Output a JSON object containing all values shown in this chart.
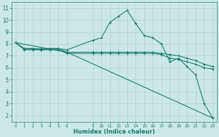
{
  "xlabel": "Humidex (Indice chaleur)",
  "bg_color": "#cce8e6",
  "grid_color": "#b0d4d2",
  "line_color": "#1a7a6e",
  "xlim": [
    -0.5,
    23.5
  ],
  "ylim": [
    1.5,
    11.5
  ],
  "x_ticks": [
    0,
    1,
    2,
    3,
    4,
    5,
    6,
    9,
    10,
    11,
    12,
    13,
    14,
    15,
    16,
    17,
    18,
    19,
    20,
    21,
    22,
    23
  ],
  "y_ticks": [
    2,
    3,
    4,
    5,
    6,
    7,
    8,
    9,
    10,
    11
  ],
  "series1_x": [
    0,
    1,
    2,
    3,
    4,
    5,
    6,
    9,
    10,
    11,
    12,
    13,
    14,
    15,
    16,
    17,
    18,
    19,
    20,
    21,
    22,
    23
  ],
  "series1_y": [
    8.1,
    7.5,
    7.5,
    7.5,
    7.6,
    7.6,
    7.5,
    8.3,
    8.5,
    9.8,
    10.3,
    10.8,
    9.7,
    8.7,
    8.5,
    8.0,
    6.5,
    6.8,
    6.1,
    5.4,
    3.0,
    1.8
  ],
  "series2_x": [
    0,
    6,
    23
  ],
  "series2_y": [
    8.1,
    7.3,
    1.8
  ],
  "series3_x": [
    0,
    1,
    2,
    3,
    4,
    5,
    6,
    9,
    10,
    11,
    12,
    13,
    14,
    15,
    16,
    17,
    18,
    19,
    20,
    21,
    22,
    23
  ],
  "series3_y": [
    8.1,
    7.6,
    7.6,
    7.6,
    7.6,
    7.6,
    7.3,
    7.3,
    7.3,
    7.3,
    7.3,
    7.3,
    7.3,
    7.3,
    7.3,
    7.2,
    7.1,
    7.0,
    6.8,
    6.6,
    6.3,
    6.1
  ],
  "series4_x": [
    0,
    1,
    2,
    3,
    4,
    5,
    6,
    9,
    10,
    11,
    12,
    13,
    14,
    15,
    16,
    17,
    18,
    19,
    20,
    21,
    22,
    23
  ],
  "series4_y": [
    8.1,
    7.6,
    7.6,
    7.5,
    7.5,
    7.5,
    7.2,
    7.2,
    7.2,
    7.2,
    7.2,
    7.2,
    7.2,
    7.2,
    7.2,
    7.1,
    6.8,
    6.7,
    6.5,
    6.3,
    6.0,
    5.9
  ]
}
